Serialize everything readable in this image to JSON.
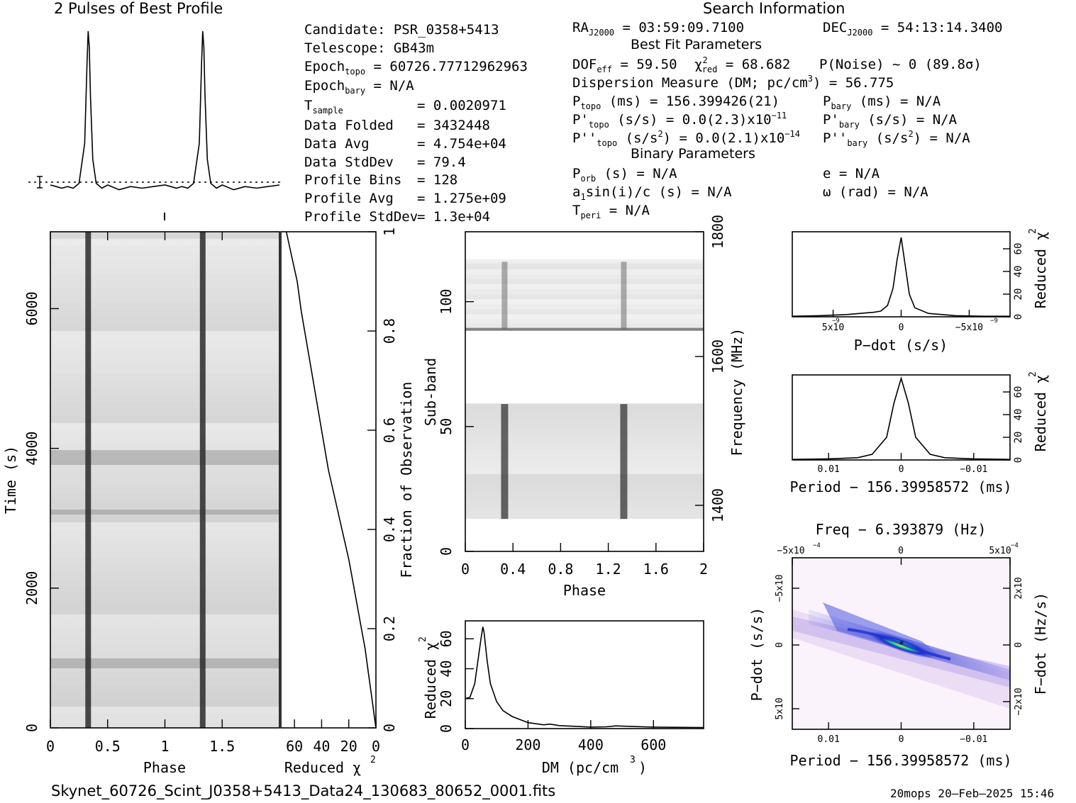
{
  "titles": {
    "profile": "2 Pulses of Best Profile",
    "search_info": "Search Information",
    "best_fit": "Best Fit Parameters",
    "binary": "Binary Parameters",
    "filename": "Skynet_60726_Scint_J0358+5413_Data24_130683_80652_0001.fits",
    "footer": "20mops 20–Feb–2025 15:46"
  },
  "info_left": [
    {
      "label": "Candidate:  PSR_0358+5413",
      "value": ""
    },
    {
      "label": "Telescope:  GB43m",
      "value": ""
    },
    {
      "label": "Epoch",
      "sub": "topo",
      "value": " = 60726.77712962963"
    },
    {
      "label": "Epoch",
      "sub": "bary",
      "value": " = N/A"
    },
    {
      "label": "T",
      "sub": "sample",
      "value": "=  0.0020971"
    },
    {
      "label": "Data Folded",
      "value": "=  3432448"
    },
    {
      "label": "Data Avg",
      "value": "=  4.754e+04"
    },
    {
      "label": "Data StdDev",
      "value": "=  79.4"
    },
    {
      "label": "Profile Bins",
      "value": "=  128"
    },
    {
      "label": "Profile Avg",
      "value": "=  1.275e+09"
    },
    {
      "label": "Profile StdDev",
      "value": "=  1.3e+04"
    }
  ],
  "search": {
    "ra_label": "RA",
    "ra_sub": "J2000",
    "ra": " = 03:59:09.7100",
    "dec_label": "DEC",
    "dec_sub": "J2000",
    "dec": " = 54:13:14.3400",
    "dof_label": "DOF",
    "dof_sub": "eff",
    "dof": " = 59.50",
    "chi_label": "χ",
    "chi_sup": "2",
    "chi_sub": "red",
    "chi": " = 68.682",
    "pnoise": "P(Noise) ~ 0   (89.8σ)",
    "dm_a": "Dispersion Measure (DM; pc/cm",
    "dm_sup": "3",
    "dm_b": ") = 56.775",
    "ptopo_label": "P",
    "ptopo_sub": "topo",
    "ptopo": " (ms) =  156.399426(21)",
    "pbary_label": "P",
    "pbary_sub": "bary",
    "pbary": " (ms) = N/A",
    "pdtopo_label": "P'",
    "pdtopo_sub": "topo",
    "pdtopo_a": " (s/s) = 0.0(2.3)x10",
    "pdtopo_exp": "−11",
    "pdbary_label": "P'",
    "pdbary_sub": "bary",
    "pdbary": " (s/s) = N/A",
    "pddtopo_label": "P''",
    "pddtopo_sub": "topo",
    "pddtopo_a": " (s/s",
    "pddtopo_sup1": "2",
    "pddtopo_b": ") = 0.0(2.1)x10",
    "pddtopo_exp": "−14",
    "pddbary_label": "P''",
    "pddbary_sub": "bary",
    "pddbary_a": " (s/s",
    "pddbary_sup": "2",
    "pddbary_b": ") = N/A",
    "porb_label": "P",
    "porb_sub": "orb",
    "porb": " (s) = N/A",
    "e": "e = N/A",
    "a1_a": "a",
    "a1_sub": "1",
    "a1_b": "sin(i)/c (s) = N/A",
    "omega": "ω (rad) = N/A",
    "tperi_label": "T",
    "tperi_sub": "peri",
    "tperi": " = N/A"
  },
  "colors": {
    "ink": "#000000",
    "grid": "#000000",
    "accent_blue": "#1d2fd1",
    "accent_green": "#22e08a",
    "bg": "#ffffff"
  },
  "chart_data": [
    {
      "type": "line",
      "id": "profile",
      "title": "2 Pulses of Best Profile",
      "xlim": [
        0,
        2
      ],
      "series": [
        {
          "x": [
            0,
            0.05,
            0.1,
            0.15,
            0.2,
            0.25,
            0.3,
            0.32,
            0.33,
            0.34,
            0.35,
            0.37,
            0.4,
            0.45,
            0.5,
            0.6,
            0.7,
            0.8,
            0.9,
            1.0,
            1.05,
            1.1,
            1.15,
            1.2,
            1.25,
            1.3,
            1.32,
            1.33,
            1.34,
            1.35,
            1.37,
            1.4,
            1.45,
            1.5,
            1.6,
            1.7,
            1.8,
            1.9,
            2.0
          ],
          "y": [
            0.04,
            0.03,
            0.02,
            0.03,
            0.02,
            0.05,
            0.3,
            0.8,
            1.0,
            0.9,
            0.6,
            0.2,
            0.05,
            0.02,
            0.04,
            0.01,
            0.03,
            0.02,
            0.03,
            0.04,
            0.03,
            0.02,
            0.03,
            0.02,
            0.05,
            0.3,
            0.8,
            1.0,
            0.9,
            0.6,
            0.2,
            0.05,
            0.02,
            0.04,
            0.01,
            0.03,
            0.02,
            0.03,
            0.04
          ]
        }
      ]
    },
    {
      "type": "heatmap",
      "id": "time-phase",
      "xlabel": "Phase",
      "ylabel": "Time (s)",
      "xlim": [
        0,
        2
      ],
      "ylim": [
        0,
        7100
      ],
      "xticks": [
        "0",
        "0.5",
        "1",
        "1.5"
      ],
      "yticks": [
        "0",
        "2000",
        "4000",
        "6000"
      ],
      "pulse_phases": [
        0.33,
        1.33
      ]
    },
    {
      "type": "line",
      "id": "chi-vs-time",
      "xlabel": "Reduced χ",
      "xlabel_sup": "2",
      "ylabel_right": "Fraction of Observation",
      "xlim": [
        70,
        0
      ],
      "ylim": [
        0,
        1
      ],
      "xticks": [
        "60",
        "40",
        "20",
        "0"
      ],
      "yticks": [
        "0",
        "0.2",
        "0.4",
        "0.6",
        "0.8",
        "1"
      ],
      "series": [
        {
          "x": [
            0,
            1.5,
            3,
            5,
            8,
            12,
            16,
            20,
            25,
            30,
            35,
            40,
            45,
            50,
            55,
            58,
            62,
            66
          ],
          "y": [
            0,
            0.03,
            0.06,
            0.1,
            0.16,
            0.22,
            0.28,
            0.34,
            0.4,
            0.46,
            0.52,
            0.6,
            0.68,
            0.76,
            0.84,
            0.9,
            0.95,
            1.0
          ]
        }
      ]
    },
    {
      "type": "heatmap",
      "id": "subband-phase",
      "xlabel": "Phase",
      "ylabel": "Sub-band",
      "ylabel_right": "Frequency (MHz)",
      "xlim": [
        0,
        2
      ],
      "ylim": [
        0,
        128
      ],
      "xticks": [
        "0",
        "0.4",
        "0.8",
        "1.2",
        "1.6",
        "2"
      ],
      "yticks": [
        "0",
        "50",
        "100"
      ],
      "freq_ticks": [
        "1400",
        "1600",
        "1800"
      ],
      "pulse_phases": [
        0.33,
        1.33
      ],
      "masked_bands": [
        [
          0,
          13
        ],
        [
          59,
          89
        ],
        [
          116,
          128
        ]
      ]
    },
    {
      "type": "line",
      "id": "chi-vs-dm",
      "xlabel": "DM (pc/cm",
      "xlabel_sup": "3",
      "xlabel_end": ")",
      "ylabel": "Reduced χ",
      "ylabel_sup": "2",
      "xlim": [
        0,
        760
      ],
      "ylim": [
        0,
        72
      ],
      "xticks": [
        "0",
        "200",
        "400",
        "600"
      ],
      "yticks": [
        "0",
        "20",
        "40",
        "60"
      ],
      "series": [
        {
          "x": [
            0,
            15,
            30,
            40,
            50,
            56,
            60,
            70,
            80,
            100,
            120,
            150,
            200,
            250,
            270,
            300,
            350,
            400,
            450,
            480,
            520,
            600,
            700,
            760
          ],
          "y": [
            20,
            21,
            30,
            45,
            60,
            68,
            64,
            45,
            30,
            18,
            12,
            8,
            4,
            2.5,
            3,
            2,
            1.5,
            1,
            1.2,
            1.8,
            1.5,
            1,
            0.8,
            0.7
          ]
        }
      ]
    },
    {
      "type": "line",
      "id": "chi-vs-pdot",
      "xlabel": "P−dot (s/s)",
      "ylabel_right": "Reduced χ",
      "ylabel_sup": "2",
      "xlim": [
        8,
        -8
      ],
      "ylim": [
        0,
        75
      ],
      "xticks": [
        "5x10",
        "0",
        "−5x10"
      ],
      "xtick_exp": "−9",
      "yticks": [
        "0",
        "20",
        "40",
        "60"
      ],
      "series": [
        {
          "x": [
            8,
            6,
            4,
            3,
            2,
            1.5,
            1,
            0.6,
            0.3,
            0,
            -0.3,
            -0.6,
            -1,
            -2,
            -3,
            -4,
            -6,
            -8
          ],
          "y": [
            0.5,
            1,
            2,
            3,
            4,
            5,
            10,
            25,
            50,
            70,
            45,
            20,
            8,
            3,
            2,
            1,
            0.5,
            0.5
          ]
        }
      ]
    },
    {
      "type": "line",
      "id": "chi-vs-period",
      "xlabel": "Period − 156.39958572 (ms)",
      "ylabel_right": "Reduced χ",
      "ylabel_sup": "2",
      "xlim": [
        0.015,
        -0.015
      ],
      "ylim": [
        0,
        75
      ],
      "xticks": [
        "0.01",
        "0",
        "−0.01"
      ],
      "yticks": [
        "0",
        "20",
        "40",
        "60"
      ],
      "series": [
        {
          "x": [
            0.015,
            0.01,
            0.006,
            0.004,
            0.002,
            0.001,
            0,
            -0.001,
            -0.002,
            -0.004,
            -0.006,
            -0.01,
            -0.015
          ],
          "y": [
            0.5,
            1,
            2,
            5,
            20,
            50,
            72,
            50,
            20,
            5,
            2,
            1,
            0.5
          ]
        }
      ]
    },
    {
      "type": "heatmap",
      "id": "pdot-period",
      "title": "Freq − 6.393879 (Hz)",
      "xlabel": "Period − 156.39958572 (ms)",
      "ylabel": "P−dot (s/s)",
      "ylabel_right": "F−dot (Hz/s)",
      "xticks": [
        "0.01",
        "0",
        "−0.01"
      ],
      "top_ticks": [
        "−5x10",
        "0",
        "5x10"
      ],
      "top_exp": "−4",
      "yticks": [
        "5x10",
        "0",
        "−5x10"
      ],
      "ytick_exp": "−9",
      "right_ticks": [
        "−2x10",
        "0",
        "2x10"
      ],
      "right_exp": "−7"
    }
  ]
}
